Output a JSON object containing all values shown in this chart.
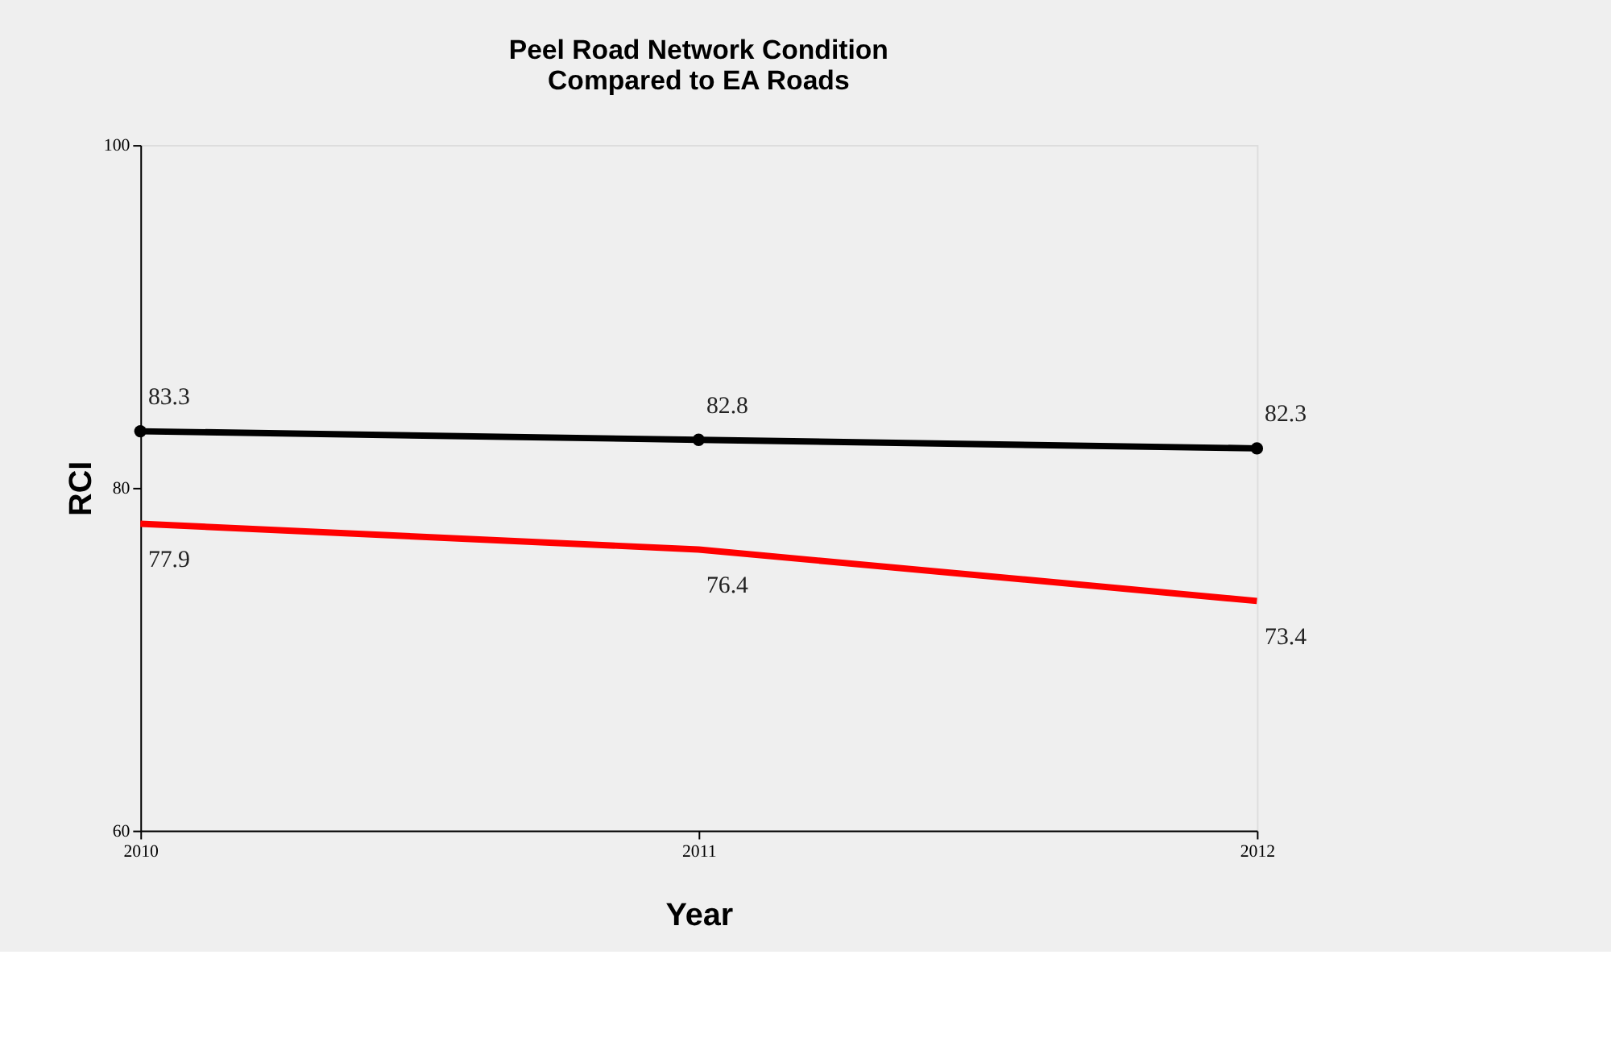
{
  "chart_data": {
    "type": "line",
    "title": "Peel  Road Network Condition\nCompared to EA Roads",
    "xlabel": "Year",
    "ylabel": "RCI",
    "categories": [
      "2010",
      "2011",
      "2012"
    ],
    "series": [
      {
        "color": "#000000",
        "values": [
          83.3,
          82.8,
          82.3
        ],
        "marker": "circle"
      },
      {
        "color": "#ff0000",
        "values": [
          77.9,
          76.4,
          73.4
        ],
        "marker": "none"
      }
    ],
    "ylim": [
      60,
      100
    ],
    "yticks": [
      60,
      80,
      100
    ],
    "grid": false,
    "legend": false,
    "data_labels": true,
    "line_style": "solid"
  }
}
